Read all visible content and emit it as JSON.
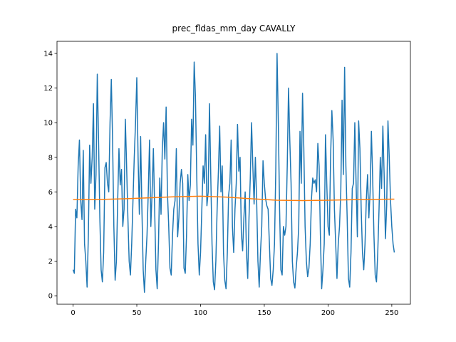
{
  "chart_data": {
    "type": "line",
    "title": "prec_fldas_mm_day CAVALLY",
    "xlim": [
      -12.6,
      264.6
    ],
    "ylim": [
      -0.49,
      14.7
    ],
    "xticks": [
      0,
      50,
      100,
      150,
      200,
      250
    ],
    "yticks": [
      0,
      2,
      4,
      6,
      8,
      10,
      12,
      14
    ],
    "series": [
      {
        "color": "#1f77b4",
        "x": [
          0,
          1,
          2,
          3,
          4,
          5,
          6,
          7,
          8,
          9,
          10,
          11,
          12,
          13,
          14,
          15,
          16,
          17,
          18,
          19,
          20,
          21,
          22,
          23,
          24,
          25,
          26,
          27,
          28,
          29,
          30,
          31,
          32,
          33,
          34,
          35,
          36,
          37,
          38,
          39,
          40,
          41,
          42,
          43,
          44,
          45,
          46,
          47,
          48,
          49,
          50,
          51,
          52,
          53,
          54,
          55,
          56,
          57,
          58,
          59,
          60,
          61,
          62,
          63,
          64,
          65,
          66,
          67,
          68,
          69,
          70,
          71,
          72,
          73,
          74,
          75,
          76,
          77,
          78,
          79,
          80,
          81,
          82,
          83,
          84,
          85,
          86,
          87,
          88,
          89,
          90,
          91,
          92,
          93,
          94,
          95,
          96,
          97,
          98,
          99,
          100,
          101,
          102,
          103,
          104,
          105,
          106,
          107,
          108,
          109,
          110,
          111,
          112,
          113,
          114,
          115,
          116,
          117,
          118,
          119,
          120,
          121,
          122,
          123,
          124,
          125,
          126,
          127,
          128,
          129,
          130,
          131,
          132,
          133,
          134,
          135,
          136,
          137,
          138,
          139,
          140,
          141,
          142,
          143,
          144,
          145,
          146,
          147,
          148,
          149,
          150,
          151,
          152,
          153,
          154,
          155,
          156,
          157,
          158,
          159,
          160,
          161,
          162,
          163,
          164,
          165,
          166,
          167,
          168,
          169,
          170,
          171,
          172,
          173,
          174,
          175,
          176,
          177,
          178,
          179,
          180,
          181,
          182,
          183,
          184,
          185,
          186,
          187,
          188,
          189,
          190,
          191,
          192,
          193,
          194,
          195,
          196,
          197,
          198,
          199,
          200,
          201,
          202,
          203,
          204,
          205,
          206,
          207,
          208,
          209,
          210,
          211,
          212,
          213,
          214,
          215,
          216,
          217,
          218,
          219,
          220,
          221,
          222,
          223,
          224,
          225,
          226,
          227,
          228,
          229,
          230,
          231,
          232,
          233,
          234,
          235,
          236,
          237,
          238,
          239,
          240,
          241,
          242,
          243,
          244,
          245,
          246,
          247,
          248,
          249,
          250,
          251,
          252
        ],
        "values": [
          1.5,
          1.3,
          5.0,
          4.5,
          7.5,
          9.0,
          5.5,
          4.4,
          8.4,
          3.0,
          2.0,
          0.5,
          3.5,
          8.7,
          6.5,
          8.0,
          11.1,
          5.0,
          7.0,
          12.8,
          9.0,
          4.5,
          1.5,
          0.8,
          2.5,
          7.4,
          7.7,
          6.5,
          6.0,
          10.0,
          12.5,
          9.0,
          4.0,
          0.9,
          2.0,
          5.5,
          8.5,
          6.4,
          7.3,
          4.0,
          5.0,
          10.2,
          7.5,
          4.5,
          2.0,
          1.2,
          3.0,
          5.5,
          8.0,
          10.0,
          12.6,
          8.0,
          4.7,
          9.2,
          5.0,
          1.5,
          0.2,
          2.0,
          3.5,
          6.0,
          9.0,
          4.0,
          6.0,
          8.5,
          5.0,
          1.5,
          0.4,
          3.0,
          6.8,
          4.7,
          8.5,
          10.0,
          7.9,
          10.9,
          6.0,
          4.1,
          1.6,
          1.2,
          3.5,
          5.0,
          5.5,
          8.5,
          3.4,
          4.5,
          6.5,
          7.3,
          6.5,
          1.6,
          1.3,
          3.5,
          7.0,
          5.5,
          6.4,
          10.2,
          8.7,
          13.5,
          11.5,
          7.0,
          3.0,
          1.2,
          2.5,
          5.0,
          7.5,
          6.5,
          9.3,
          5.2,
          6.0,
          11.1,
          7.0,
          3.0,
          0.8,
          0.35,
          2.0,
          5.0,
          7.2,
          9.8,
          6.0,
          7.5,
          2.5,
          0.9,
          0.4,
          2.5,
          5.8,
          6.5,
          9.0,
          4.0,
          2.5,
          5.0,
          6.5,
          9.9,
          7.2,
          8.0,
          3.6,
          2.6,
          4.5,
          6.0,
          2.5,
          1.0,
          4.5,
          6.8,
          10.0,
          7.5,
          5.3,
          8.0,
          5.5,
          2.0,
          0.5,
          2.5,
          4.0,
          7.8,
          6.5,
          5.6,
          5.2,
          5.0,
          3.0,
          1.0,
          0.6,
          1.5,
          3.0,
          7.2,
          14.0,
          10.0,
          5.0,
          1.5,
          1.2,
          4.0,
          3.5,
          4.0,
          7.5,
          12.0,
          9.0,
          6.5,
          2.0,
          0.8,
          0.45,
          1.6,
          2.5,
          4.0,
          9.5,
          6.5,
          11.7,
          8.5,
          4.0,
          2.0,
          1.1,
          1.6,
          3.0,
          5.6,
          6.8,
          6.5,
          6.7,
          6.0,
          8.8,
          7.5,
          3.5,
          0.4,
          1.5,
          3.0,
          9.3,
          6.5,
          4.0,
          3.5,
          8.0,
          10.7,
          9.0,
          5.0,
          3.0,
          1.0,
          3.0,
          4.0,
          6.0,
          11.3,
          7.0,
          13.2,
          7.5,
          4.5,
          1.0,
          0.5,
          2.5,
          6.2,
          6.5,
          10.0,
          6.5,
          3.4,
          10.1,
          8.5,
          5.0,
          2.5,
          1.5,
          3.0,
          5.5,
          7.0,
          4.5,
          6.0,
          9.5,
          6.8,
          3.5,
          1.2,
          0.8,
          2.5,
          5.0,
          8.0,
          6.2,
          9.8,
          7.0,
          3.3,
          5.2,
          10.1,
          8.0,
          5.5,
          4.0,
          3.0,
          2.5
        ]
      },
      {
        "color": "#ff7f0e",
        "x": [
          0,
          20,
          40,
          60,
          80,
          100,
          120,
          140,
          160,
          180,
          200,
          220,
          240,
          252
        ],
        "values": [
          5.55,
          5.56,
          5.6,
          5.66,
          5.72,
          5.75,
          5.7,
          5.6,
          5.52,
          5.5,
          5.52,
          5.55,
          5.57,
          5.58
        ]
      }
    ]
  }
}
